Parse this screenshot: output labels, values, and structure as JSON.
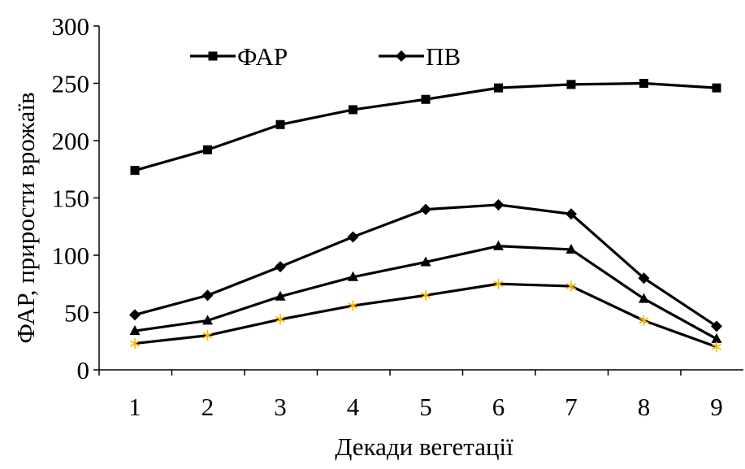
{
  "chart_data": {
    "type": "line",
    "title": "",
    "xlabel": "Декади вегетації",
    "ylabel": "ФАР, прирости врожаїв",
    "categories": [
      "1",
      "2",
      "3",
      "4",
      "5",
      "6",
      "7",
      "8",
      "9"
    ],
    "ylim": [
      0,
      300
    ],
    "yticks": [
      "0",
      "50",
      "100",
      "150",
      "200",
      "250",
      "300"
    ],
    "grid": false,
    "legend_position": "top",
    "series": [
      {
        "name": "ФАР",
        "marker": "square",
        "color": "#000000",
        "marker_color": "#000000",
        "values": [
          174,
          192,
          214,
          227,
          236,
          246,
          249,
          250,
          246
        ]
      },
      {
        "name": "ПВ",
        "marker": "diamond",
        "color": "#000000",
        "marker_color": "#000000",
        "values": [
          48,
          65,
          90,
          116,
          140,
          144,
          136,
          80,
          38
        ]
      },
      {
        "name": "",
        "marker": "triangle",
        "color": "#000000",
        "marker_color": "#000000",
        "values": [
          34,
          43,
          64,
          81,
          94,
          108,
          105,
          62,
          27
        ]
      },
      {
        "name": "",
        "marker": "star",
        "color": "#000000",
        "marker_color": "#F5B800",
        "values": [
          23,
          30,
          44,
          56,
          65,
          75,
          73,
          43,
          20
        ]
      }
    ]
  }
}
